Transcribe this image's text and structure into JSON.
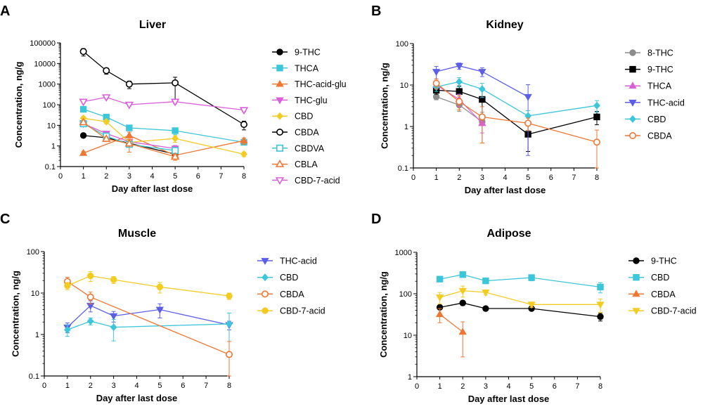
{
  "chart_data": [
    {
      "panel": "A",
      "type": "line",
      "title": "Liver",
      "xlabel": "Day after last dose",
      "ylabel": "Concentration, ng/g",
      "yscale": "log",
      "xlim": [
        0,
        8
      ],
      "ylim": [
        0.1,
        100000
      ],
      "xticks": [
        "0",
        "1",
        "2",
        "3",
        "4",
        "5",
        "6",
        "7",
        "8"
      ],
      "yticks": [
        "0.1",
        "1",
        "10",
        "100",
        "1000",
        "10000",
        "100000"
      ],
      "legend": "right",
      "series": [
        {
          "name": "9-THC",
          "color": "#000000",
          "marker": "circle",
          "points": [
            [
              1,
              3.2
            ],
            [
              2,
              2.5
            ],
            [
              5,
              0.4
            ]
          ],
          "err": [
            0.5,
            0.6,
            0.1
          ]
        },
        {
          "name": "THCA",
          "color": "#3cc6d9",
          "marker": "square",
          "points": [
            [
              1,
              60
            ],
            [
              2,
              25
            ],
            [
              3,
              7.5
            ],
            [
              5,
              5.5
            ],
            [
              8,
              1.5
            ]
          ],
          "err": [
            10,
            4,
            1.5,
            2,
            0.3
          ]
        },
        {
          "name": "THC-acid-glu",
          "color": "#ee7733",
          "marker": "triangle-up",
          "points": [
            [
              1,
              0.45
            ],
            [
              3,
              3.2
            ],
            [
              5,
              0.35
            ],
            [
              8,
              1.8
            ]
          ],
          "err": [
            0.1,
            1.5,
            0.1,
            0.6
          ]
        },
        {
          "name": "THC-glu",
          "color": "#d95fd9",
          "marker": "triangle-down",
          "points": [
            [
              1,
              12
            ],
            [
              2,
              4
            ],
            [
              3,
              1.6
            ],
            [
              5,
              0.75
            ]
          ],
          "err": [
            2,
            1,
            0.5,
            0.3
          ]
        },
        {
          "name": "CBD",
          "color": "#f2cc22",
          "marker": "diamond",
          "points": [
            [
              1,
              22
            ],
            [
              2,
              15
            ],
            [
              3,
              1.5
            ],
            [
              5,
              2.3
            ],
            [
              8,
              0.4
            ]
          ],
          "err": [
            5,
            3,
            0.5,
            0.8,
            0.1
          ]
        },
        {
          "name": "CBDA",
          "color": "#000000",
          "marker": "circle-open",
          "points": [
            [
              1,
              38000
            ],
            [
              2,
              4500
            ],
            [
              3,
              1000
            ],
            [
              5,
              1150
            ],
            [
              8,
              11
            ]
          ],
          "err": [
            15000,
            1500,
            400,
            1000,
            5
          ]
        },
        {
          "name": "CBDVA",
          "color": "#3cc6d9",
          "marker": "square-open",
          "points": [
            [
              1,
              12
            ],
            [
              2,
              3
            ],
            [
              3,
              1.2
            ],
            [
              5,
              0.6
            ]
          ],
          "err": [
            2,
            0.5,
            0.3,
            0.2
          ]
        },
        {
          "name": "CBLA",
          "color": "#ee7733",
          "marker": "triangle-up-open",
          "points": [
            [
              1,
              14
            ],
            [
              2,
              2.2
            ],
            [
              3,
              1.3
            ],
            [
              5,
              0.3
            ]
          ],
          "err": [
            3,
            0.5,
            0.8,
            0.1
          ]
        },
        {
          "name": "CBD-7-acid",
          "color": "#d95fd9",
          "marker": "triangle-down-open",
          "points": [
            [
              1,
              140
            ],
            [
              2,
              230
            ],
            [
              3,
              100
            ],
            [
              5,
              140
            ],
            [
              8,
              55
            ]
          ],
          "err": [
            20,
            40,
            15,
            30,
            10
          ]
        }
      ]
    },
    {
      "panel": "B",
      "type": "line",
      "title": "Kidney",
      "xlabel": "Day after last dose",
      "ylabel": "Concentration, ng/g",
      "yscale": "log",
      "xlim": [
        0,
        8
      ],
      "ylim": [
        0.1,
        100
      ],
      "xticks": [
        "0",
        "1",
        "2",
        "3",
        "4",
        "5",
        "6",
        "7",
        "8"
      ],
      "yticks": [
        "0.1",
        "1",
        "10",
        "100"
      ],
      "legend": "right",
      "series": [
        {
          "name": "8-THC",
          "color": "#8c8c8c",
          "marker": "circle",
          "points": [
            [
              1,
              5.2
            ],
            [
              2,
              3.3
            ],
            [
              3,
              1.3
            ]
          ],
          "err": [
            0.8,
            1.0,
            0.9
          ]
        },
        {
          "name": "9-THC",
          "color": "#000000",
          "marker": "square",
          "points": [
            [
              1,
              7.5
            ],
            [
              2,
              7
            ],
            [
              3,
              4.5
            ],
            [
              5,
              0.65
            ],
            [
              8,
              1.7
            ]
          ],
          "err": [
            1.5,
            2.5,
            3,
            0.4,
            0.6
          ]
        },
        {
          "name": "THCA",
          "color": "#d95fd9",
          "marker": "triangle-up",
          "points": [
            [
              1,
              10
            ],
            [
              2,
              4.5
            ],
            [
              3,
              1.2
            ]
          ],
          "err": [
            2,
            1.5,
            0.5
          ]
        },
        {
          "name": "THC-acid",
          "color": "#5b5fe6",
          "marker": "triangle-down",
          "points": [
            [
              1,
              21
            ],
            [
              2,
              29
            ],
            [
              3,
              21
            ],
            [
              5,
              5.2
            ]
          ],
          "err": [
            7,
            5,
            5,
            5
          ]
        },
        {
          "name": "CBD",
          "color": "#3cc6d9",
          "marker": "diamond",
          "points": [
            [
              1,
              9
            ],
            [
              2,
              12
            ],
            [
              3,
              8
            ],
            [
              5,
              1.8
            ],
            [
              8,
              3.2
            ]
          ],
          "err": [
            2,
            3,
            3,
            0.6,
            1
          ]
        },
        {
          "name": "CBDA",
          "color": "#ee7733",
          "marker": "circle-open",
          "points": [
            [
              1,
              11
            ],
            [
              2,
              4
            ],
            [
              3,
              1.7
            ],
            [
              5,
              1.2
            ],
            [
              8,
              0.42
            ]
          ],
          "err": [
            3,
            1.5,
            1.3,
            0.4,
            0.4
          ]
        }
      ]
    },
    {
      "panel": "C",
      "type": "line",
      "title": "Muscle",
      "xlabel": "Day after last dose",
      "ylabel": "Concentration, ng/g",
      "yscale": "log",
      "xlim": [
        0,
        8
      ],
      "ylim": [
        0.1,
        100
      ],
      "xticks": [
        "0",
        "1",
        "2",
        "3",
        "4",
        "5",
        "6",
        "7",
        "8"
      ],
      "yticks": [
        "0.1",
        "1",
        "10",
        "100"
      ],
      "legend": "right",
      "series": [
        {
          "name": "THC-acid",
          "color": "#5b5fe6",
          "marker": "triangle-down",
          "points": [
            [
              1,
              1.5
            ],
            [
              2,
              5
            ],
            [
              3,
              2.8
            ],
            [
              5,
              4
            ],
            [
              8,
              1.7
            ]
          ],
          "err": [
            0.4,
            1.5,
            0.8,
            1.5,
            0.4
          ]
        },
        {
          "name": "CBD",
          "color": "#3cc6d9",
          "marker": "diamond",
          "points": [
            [
              1,
              1.3
            ],
            [
              2,
              2.1
            ],
            [
              3,
              1.5
            ],
            [
              8,
              1.8
            ]
          ],
          "err": [
            0.4,
            0.4,
            0.8,
            1.5
          ]
        },
        {
          "name": "CBDA",
          "color": "#ee7733",
          "marker": "circle-open",
          "points": [
            [
              1,
              19
            ],
            [
              2,
              8
            ],
            [
              8,
              0.33
            ]
          ],
          "err": [
            5,
            2.5,
            0.35
          ]
        },
        {
          "name": "CBD-7-acid",
          "color": "#f2cc22",
          "marker": "circle",
          "points": [
            [
              1,
              15
            ],
            [
              2,
              26
            ],
            [
              3,
              21
            ],
            [
              5,
              14
            ],
            [
              8,
              8.5
            ]
          ],
          "err": [
            3,
            7,
            4,
            4,
            1.5
          ]
        }
      ]
    },
    {
      "panel": "D",
      "type": "line",
      "title": "Adipose",
      "xlabel": "Day after last dose",
      "ylabel": "Concentration, ng/g",
      "yscale": "log",
      "xlim": [
        0,
        8
      ],
      "ylim": [
        1,
        1000
      ],
      "xticks": [
        "0",
        "1",
        "2",
        "3",
        "4",
        "5",
        "6",
        "7",
        "8"
      ],
      "yticks": [
        "1",
        "10",
        "100",
        "1000"
      ],
      "legend": "right",
      "series": [
        {
          "name": "9-THC",
          "color": "#000000",
          "marker": "circle",
          "points": [
            [
              1,
              47
            ],
            [
              2,
              60
            ],
            [
              3,
              44
            ],
            [
              5,
              44
            ],
            [
              8,
              28
            ]
          ],
          "err": [
            5,
            8,
            4,
            4,
            6
          ]
        },
        {
          "name": "CBD",
          "color": "#3cc6d9",
          "marker": "square",
          "points": [
            [
              1,
              225
            ],
            [
              2,
              290
            ],
            [
              3,
              205
            ],
            [
              5,
              245
            ],
            [
              8,
              145
            ]
          ],
          "err": [
            30,
            40,
            30,
            40,
            40
          ]
        },
        {
          "name": "CBDA",
          "color": "#ee7733",
          "marker": "triangle-up",
          "points": [
            [
              1,
              32
            ],
            [
              2,
              12
            ]
          ],
          "err": [
            12,
            9
          ]
        },
        {
          "name": "CBD-7-acid",
          "color": "#f2cc22",
          "marker": "triangle-down",
          "points": [
            [
              1,
              82
            ],
            [
              2,
              118
            ],
            [
              3,
              108
            ],
            [
              5,
              55
            ],
            [
              8,
              55
            ]
          ],
          "err": [
            25,
            35,
            15,
            8,
            20
          ]
        }
      ]
    }
  ]
}
